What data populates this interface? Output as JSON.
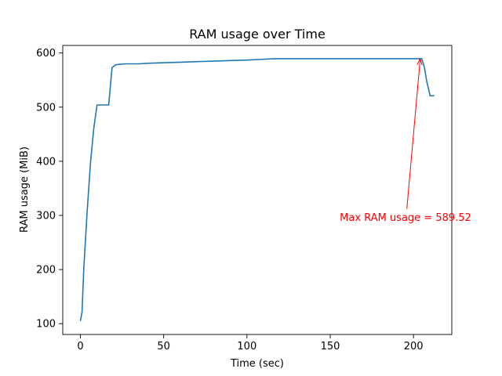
{
  "colors": {
    "series": "#1f77b4",
    "annotation": "#ff0000",
    "axis": "#000000",
    "background": "#ffffff"
  },
  "chart_data": {
    "type": "line",
    "title": "RAM usage over Time",
    "xlabel": "Time (sec)",
    "ylabel": "RAM usage (MiB)",
    "xlim": [
      -10.6,
      223.0
    ],
    "ylim": [
      80,
      614
    ],
    "xticks": [
      0,
      50,
      100,
      150,
      200
    ],
    "yticks": [
      100,
      200,
      300,
      400,
      500,
      600
    ],
    "grid": false,
    "legend": "none",
    "series": [
      {
        "x": [
          0,
          1,
          2,
          4,
          6,
          8,
          10,
          12,
          14,
          17,
          19,
          21,
          23,
          27,
          30,
          35,
          40,
          50,
          60,
          70,
          80,
          90,
          100,
          110,
          117,
          130,
          150,
          170,
          190,
          200,
          205,
          206.5,
          208,
          210,
          212.5
        ],
        "values": [
          105,
          122,
          200,
          305,
          395,
          460,
          504,
          504,
          504,
          504,
          573,
          578,
          579,
          580,
          580,
          580,
          581,
          582,
          583,
          584,
          585,
          586,
          587,
          588.5,
          589.5,
          589.5,
          589.5,
          589.5,
          589.5,
          589.5,
          589.5,
          574,
          547,
          521,
          521
        ]
      }
    ],
    "annotations": [
      {
        "text": "Max RAM usage = 589.52",
        "point": [
          204,
          589.52
        ],
        "text_anchor_point": [
          196,
          312
        ]
      }
    ]
  }
}
